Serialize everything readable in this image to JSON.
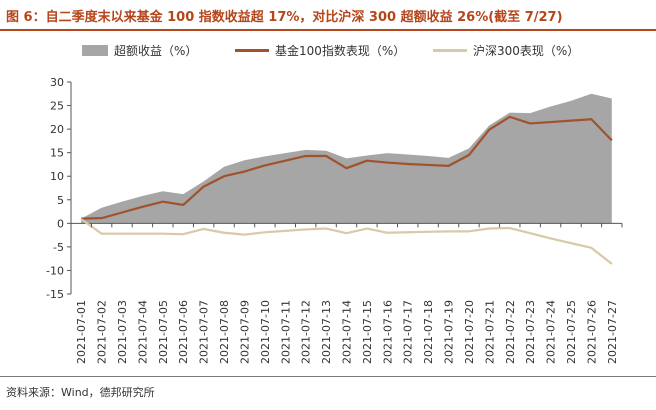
{
  "header": {
    "title": "图 6：自二季度末以来基金 100 指数收益超 17%，对比沪深 300 超额收益 26%(截至 7/27)"
  },
  "footer": {
    "source": "资料来源：Wind，德邦研究所"
  },
  "colors": {
    "title": "#b5451b",
    "area": "#a6a6a6",
    "fund": "#a0522d",
    "hs300": "#d9c9a6"
  },
  "chart_data": {
    "type": "line",
    "categories": [
      "2021-07-01",
      "2021-07-02",
      "2021-07-03",
      "2021-07-04",
      "2021-07-05",
      "2021-07-06",
      "2021-07-07",
      "2021-07-08",
      "2021-07-09",
      "2021-07-10",
      "2021-07-11",
      "2021-07-12",
      "2021-07-13",
      "2021-07-14",
      "2021-07-15",
      "2021-07-16",
      "2021-07-17",
      "2021-07-18",
      "2021-07-19",
      "2021-07-20",
      "2021-07-21",
      "2021-07-22",
      "2021-07-23",
      "2021-07-24",
      "2021-07-25",
      "2021-07-26",
      "2021-07-27"
    ],
    "series": [
      {
        "name": "超额收益（%）",
        "kind": "area",
        "values": [
          1.0,
          3.3,
          4.6,
          5.8,
          6.8,
          6.2,
          8.9,
          12.0,
          13.4,
          14.2,
          14.9,
          15.6,
          15.4,
          13.8,
          14.4,
          14.9,
          14.6,
          14.3,
          13.9,
          15.9,
          20.8,
          23.5,
          23.4,
          24.8,
          26.0,
          27.5,
          26.5
        ]
      },
      {
        "name": "基金100指数表现（%）",
        "kind": "line",
        "values": [
          1.0,
          1.1,
          2.3,
          3.5,
          4.6,
          3.9,
          7.8,
          10.0,
          11.0,
          12.3,
          13.3,
          14.3,
          14.3,
          11.7,
          13.3,
          12.9,
          12.6,
          12.4,
          12.2,
          14.5,
          19.9,
          22.6,
          21.2,
          21.5,
          21.8,
          22.1,
          17.6
        ]
      },
      {
        "name": "沪深300表现（%）",
        "kind": "line",
        "values": [
          0.9,
          -2.2,
          -2.2,
          -2.2,
          -2.2,
          -2.3,
          -1.2,
          -2.0,
          -2.4,
          -1.9,
          -1.6,
          -1.3,
          -1.1,
          -2.1,
          -1.1,
          -2.0,
          -1.9,
          -1.8,
          -1.7,
          -1.7,
          -1.1,
          -1.0,
          -2.1,
          -3.2,
          -4.2,
          -5.2,
          -8.6
        ]
      }
    ],
    "ylim": [
      -15,
      30
    ],
    "yticks": [
      -15,
      -10,
      -5,
      0,
      5,
      10,
      15,
      20,
      25,
      30
    ],
    "grid": false,
    "legend": "top"
  }
}
